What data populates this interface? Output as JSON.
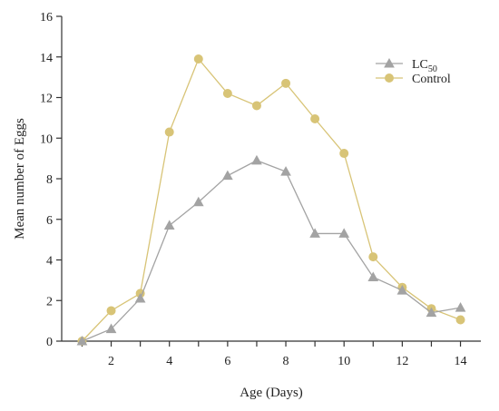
{
  "chart_data": {
    "type": "line",
    "title": "",
    "xlabel": "Age (Days)",
    "ylabel": "Mean number of Eggs",
    "x": [
      1,
      2,
      3,
      4,
      5,
      6,
      7,
      8,
      9,
      10,
      11,
      12,
      13,
      14
    ],
    "xlim": [
      0.3,
      14.7
    ],
    "ylim": [
      0,
      16
    ],
    "xticks": [
      2,
      4,
      6,
      8,
      10,
      12,
      14
    ],
    "yticks": [
      0,
      2,
      4,
      6,
      8,
      10,
      12,
      14,
      16
    ],
    "grid": false,
    "legend_position": "top-right",
    "series": [
      {
        "name": "LC",
        "name_subscript": "50",
        "marker": "triangle",
        "color": "#a3a3a3",
        "values": [
          0,
          0.6,
          2.1,
          5.7,
          6.85,
          8.15,
          8.9,
          8.35,
          5.3,
          5.3,
          3.15,
          2.5,
          1.4,
          1.65
        ]
      },
      {
        "name": "Control",
        "marker": "circle",
        "color": "#d8c477",
        "values": [
          0,
          1.5,
          2.35,
          10.3,
          13.9,
          12.2,
          11.6,
          12.7,
          10.95,
          9.25,
          4.15,
          2.65,
          1.6,
          1.05
        ]
      }
    ]
  }
}
